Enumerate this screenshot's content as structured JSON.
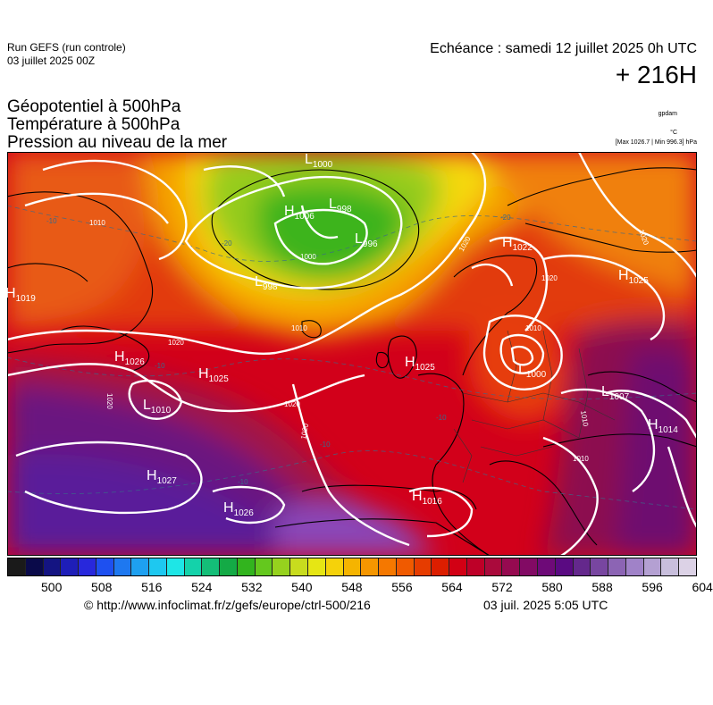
{
  "header": {
    "run_title": "Run GEFS (run controle)",
    "run_date": "03 juillet 2025 00Z",
    "valid_time": "Echéance : samedi 12 juillet 2025 0h UTC",
    "lead_time": "+ 216H"
  },
  "variables": [
    "Géopotentiel à 500hPa",
    "Température à 500hPa",
    "Pression au niveau de la mer"
  ],
  "units": {
    "geopotential": "gpdam",
    "temperature": "°C",
    "pressure": "[Max 1026.7 | Min 996.3] hPa"
  },
  "map": {
    "pressure_centers": [
      {
        "type": "H",
        "value": "1019"
      },
      {
        "type": "H",
        "value": "1006"
      },
      {
        "type": "L",
        "value": "998"
      },
      {
        "type": "L",
        "value": "996"
      },
      {
        "type": "L",
        "value": "998"
      },
      {
        "type": "L",
        "value": "1000"
      },
      {
        "type": "H",
        "value": "1022"
      },
      {
        "type": "H",
        "value": "1025"
      },
      {
        "type": "H",
        "value": "1026"
      },
      {
        "type": "H",
        "value": "1025"
      },
      {
        "type": "L",
        "value": "1010"
      },
      {
        "type": "H",
        "value": "1025"
      },
      {
        "type": "L",
        "value": "1000"
      },
      {
        "type": "L",
        "value": "1007"
      },
      {
        "type": "H",
        "value": "1014"
      },
      {
        "type": "H",
        "value": "1027"
      },
      {
        "type": "H",
        "value": "1026"
      },
      {
        "type": "H",
        "value": "1016"
      }
    ],
    "isobar_labels": [
      "1010",
      "1000",
      "1020",
      "1010",
      "1020",
      "1020",
      "1020",
      "1010",
      "1020",
      "1010",
      "1020",
      "1020",
      "1010"
    ],
    "isotherm_labels": [
      "-10",
      "-20",
      "-20",
      "-10",
      "-10",
      "-10",
      "-10"
    ]
  },
  "colorbar": {
    "colors": [
      "#1a1a1a",
      "#0a0a4a",
      "#141482",
      "#1e1eb8",
      "#2828dc",
      "#1e50f0",
      "#1e78f0",
      "#1ea0f0",
      "#1ec8f0",
      "#1ee6e6",
      "#14d2aa",
      "#14be78",
      "#14aa46",
      "#32b41e",
      "#64c81e",
      "#96d21e",
      "#c8dc1e",
      "#e6e614",
      "#f5d20a",
      "#f5b400",
      "#f59600",
      "#f57800",
      "#f05a00",
      "#e63c00",
      "#dc1e00",
      "#d20014",
      "#be0028",
      "#aa0a3c",
      "#960a50",
      "#820a64",
      "#6e0a78",
      "#5a0a82",
      "#64288c",
      "#7846a0",
      "#8c64b4",
      "#a082c8",
      "#b4a0d2",
      "#c8bedc",
      "#dcd2e6"
    ],
    "tick_labels": [
      "500",
      "508",
      "516",
      "524",
      "532",
      "540",
      "548",
      "556",
      "564",
      "572",
      "580",
      "588",
      "596",
      "604"
    ]
  },
  "footer": {
    "credit": "© http://www.infoclimat.fr/z/gefs/europe/ctrl-500/216",
    "generated": "03 juil. 2025  5:05 UTC"
  }
}
